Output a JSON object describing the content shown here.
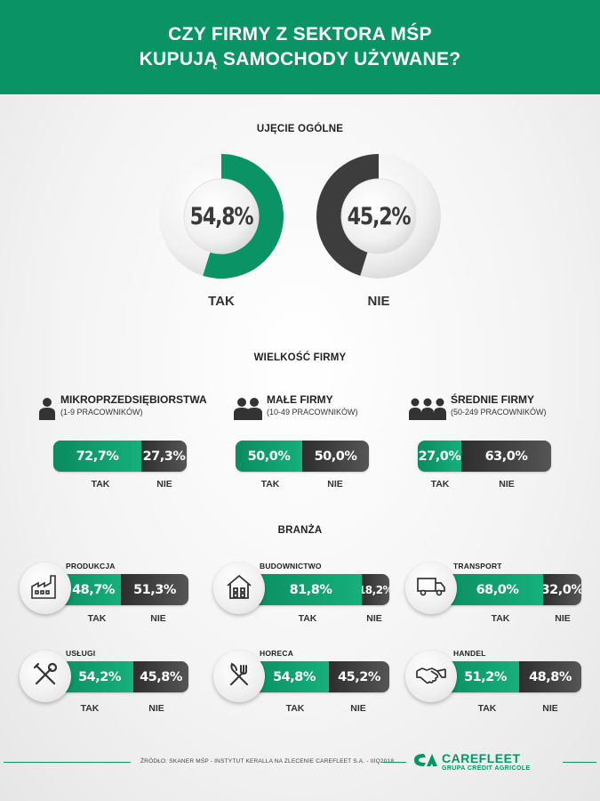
{
  "header": {
    "line1": "CZY FIRMY Z SEKTORA MŚP",
    "line2": "KUPUJĄ SAMOCHODY UŻYWANE?"
  },
  "sections": {
    "overall": "UJĘCIE OGÓLNE",
    "size": "WIELKOŚĆ FIRMY",
    "industry": "BRANŻA"
  },
  "colors": {
    "green": "#0a9466",
    "dark": "#3d3d3d"
  },
  "labels": {
    "yes": "TAK",
    "no": "NIE"
  },
  "overall": [
    {
      "label": "TAK",
      "value_text": "54,8%",
      "value": 54.8,
      "color": "#0a9466"
    },
    {
      "label": "NIE",
      "value_text": "45,2%",
      "value": 45.2,
      "color": "#3d3d3d"
    }
  ],
  "size": [
    {
      "name": "MIKROPRZEDSIĘBIORSTWA",
      "sub": "(1-9 PRACOWNIKÓW)",
      "icon": "person-icon",
      "tak": "72,7%",
      "nie": "27,3%",
      "tak_value": 72.7
    },
    {
      "name": "MAŁE FIRMY",
      "sub": "(10-49 PRACOWNIKÓW)",
      "icon": "two-people-icon",
      "tak": "50,0%",
      "nie": "50,0%",
      "tak_value": 50.0
    },
    {
      "name": "ŚREDNIE FIRMY",
      "sub": "(50-249 PRACOWNIKÓW)",
      "icon": "three-people-icon",
      "tak": "27,0%",
      "nie": "63,0%",
      "tak_value": 27.0
    }
  ],
  "industry": [
    {
      "name": "PRODUKCJA",
      "icon": "factory-icon",
      "tak": "48,7%",
      "nie": "51,3%",
      "tak_value": 48.7
    },
    {
      "name": "BUDOWNICTWO",
      "icon": "house-icon",
      "tak": "81,8%",
      "nie": "18,2%",
      "tak_value": 81.8
    },
    {
      "name": "TRANSPORT",
      "icon": "truck-icon",
      "tak": "68,0%",
      "nie": "32,0%",
      "tak_value": 68.0
    },
    {
      "name": "USŁUGI",
      "icon": "tools-icon",
      "tak": "54,2%",
      "nie": "45,8%",
      "tak_value": 54.2
    },
    {
      "name": "HORECA",
      "icon": "fork-knife-icon",
      "tak": "54,8%",
      "nie": "45,2%",
      "tak_value": 54.8
    },
    {
      "name": "HANDEL",
      "icon": "handshake-icon",
      "tak": "51,2%",
      "nie": "48,8%",
      "tak_value": 51.2
    }
  ],
  "footer": {
    "source": "ŹRÓDŁO: SKANER MŚP - INSTYTUT KERALLA NA ZLECENIE CAREFLEET S.A. - IIIQ2018",
    "logo_main": "CAREFLEET",
    "logo_sub": "GRUPA CRÉDIT AGRICOLE"
  },
  "chart_data": [
    {
      "type": "pie",
      "title": "UJĘCIE OGÓLNE",
      "categories": [
        "TAK",
        "NIE"
      ],
      "values": [
        54.8,
        45.2
      ]
    },
    {
      "type": "bar",
      "title": "WIELKOŚĆ FIRMY",
      "categories": [
        "MIKROPRZEDSIĘBIORSTWA",
        "MAŁE FIRMY",
        "ŚREDNIE FIRMY"
      ],
      "series": [
        {
          "name": "TAK",
          "values": [
            72.7,
            50.0,
            27.0
          ]
        },
        {
          "name": "NIE",
          "values": [
            27.3,
            50.0,
            63.0
          ]
        }
      ]
    },
    {
      "type": "bar",
      "title": "BRANŻA",
      "categories": [
        "PRODUKCJA",
        "BUDOWNICTWO",
        "TRANSPORT",
        "USŁUGI",
        "HORECA",
        "HANDEL"
      ],
      "series": [
        {
          "name": "TAK",
          "values": [
            48.7,
            81.8,
            68.0,
            54.2,
            54.8,
            51.2
          ]
        },
        {
          "name": "NIE",
          "values": [
            51.3,
            18.2,
            32.0,
            45.8,
            45.2,
            48.8
          ]
        }
      ]
    }
  ]
}
